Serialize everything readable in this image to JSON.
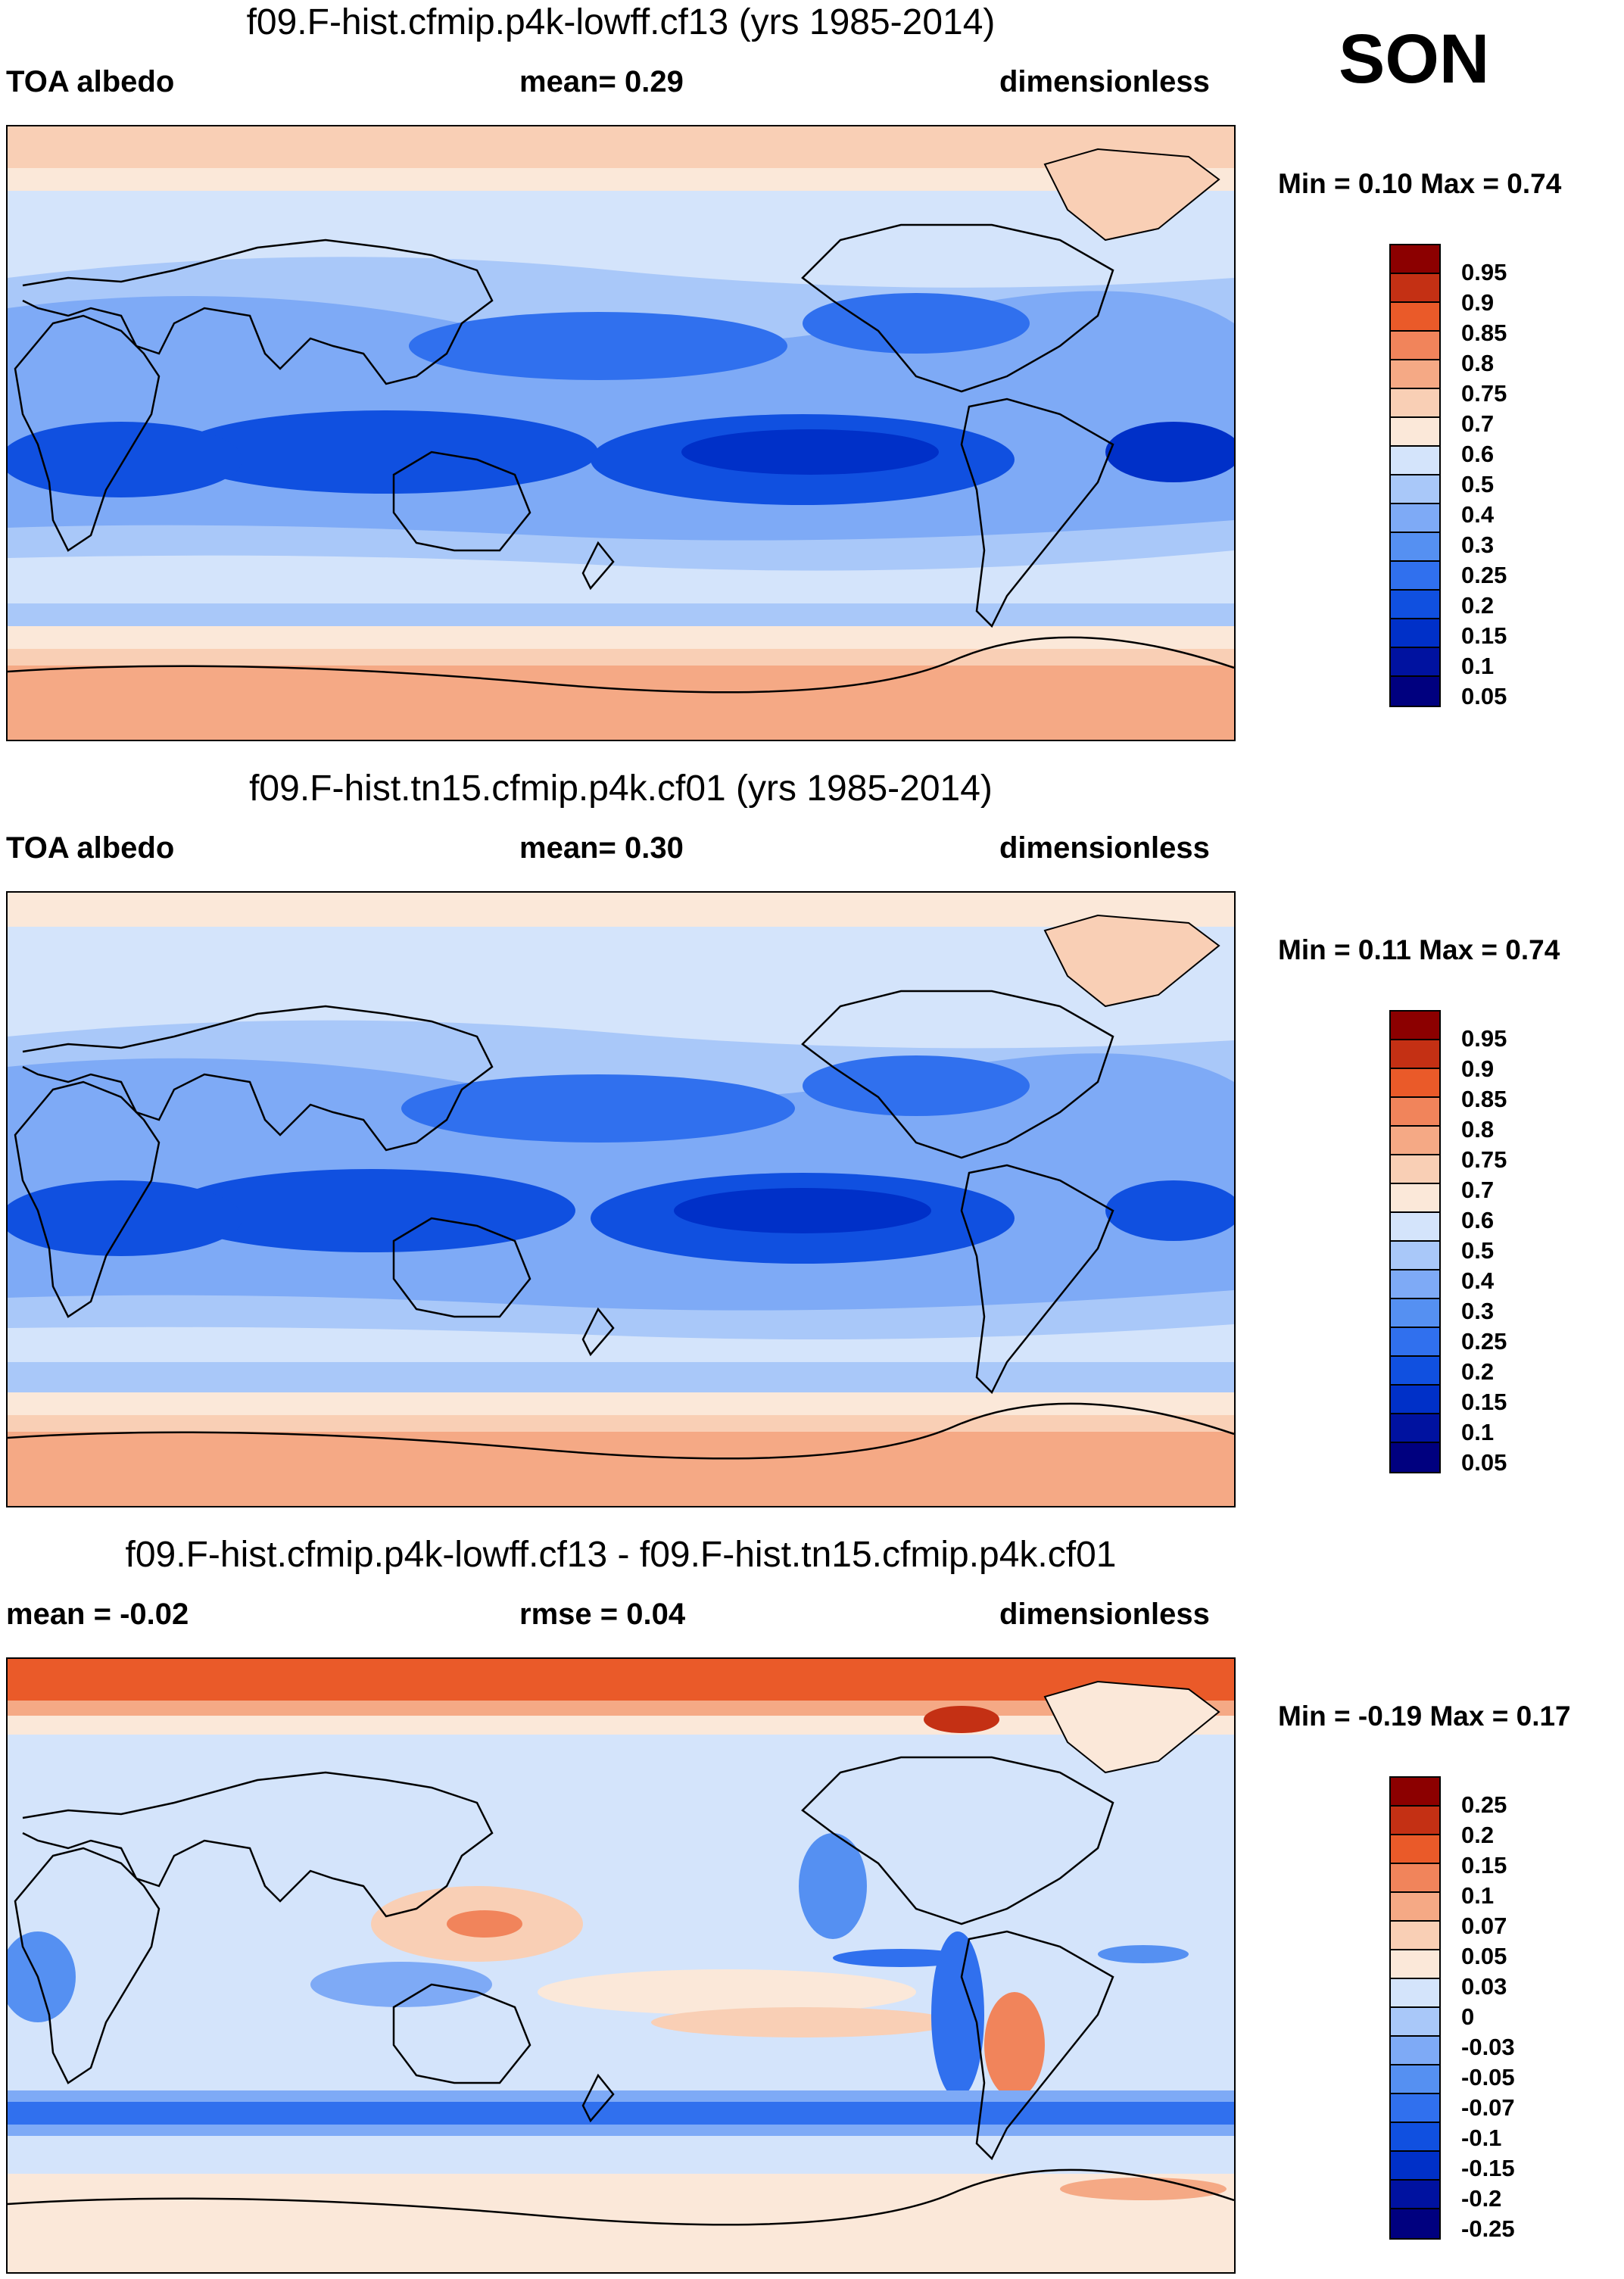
{
  "season": "SON",
  "colors": {
    "albedo_scale": [
      "#00007f",
      "#0012a0",
      "#0030c8",
      "#1050e0",
      "#3070ee",
      "#5590f2",
      "#7eaaf6",
      "#a9c8f9",
      "#d4e4fb",
      "#fbe8d9",
      "#f9cfb5",
      "#f5a985",
      "#f1845b",
      "#ea5a29",
      "#c43014",
      "#8c0000"
    ],
    "diff_scale": [
      "#00007f",
      "#0012a0",
      "#0030c8",
      "#1050e0",
      "#3070ee",
      "#5590f2",
      "#7eaaf6",
      "#a9c8f9",
      "#d4e4fb",
      "#fbe8d9",
      "#f9cfb5",
      "#f5a985",
      "#f1845b",
      "#ea5a29",
      "#c43014",
      "#8c0000"
    ]
  },
  "panels": [
    {
      "title": "f09.F-hist.cfmip.p4k-lowff.cf13 (yrs 1985-2014)",
      "left": "TOA albedo",
      "middle": "mean=   0.29",
      "right": "dimensionless",
      "minmax": "Min =   0.10 Max =   0.74",
      "legend_labels": [
        "0.95",
        "0.9",
        "0.85",
        "0.8",
        "0.75",
        "0.7",
        "0.6",
        "0.5",
        "0.4",
        "0.3",
        "0.25",
        "0.2",
        "0.15",
        "0.1",
        "0.05"
      ]
    },
    {
      "title": "f09.F-hist.tn15.cfmip.p4k.cf01 (yrs 1985-2014)",
      "left": "TOA albedo",
      "middle": "mean=   0.30",
      "right": "dimensionless",
      "minmax": "Min =   0.11 Max =   0.74",
      "legend_labels": [
        "0.95",
        "0.9",
        "0.85",
        "0.8",
        "0.75",
        "0.7",
        "0.6",
        "0.5",
        "0.4",
        "0.3",
        "0.25",
        "0.2",
        "0.15",
        "0.1",
        "0.05"
      ]
    },
    {
      "title": "f09.F-hist.cfmip.p4k-lowff.cf13 - f09.F-hist.tn15.cfmip.p4k.cf01",
      "left": "mean =  -0.02",
      "middle": "rmse =   0.04",
      "right": "dimensionless",
      "minmax": "Min =  -0.19 Max =   0.17",
      "legend_labels": [
        "0.25",
        "0.2",
        "0.15",
        "0.1",
        "0.07",
        "0.05",
        "0.03",
        "0",
        "-0.03",
        "-0.05",
        "-0.07",
        "-0.1",
        "-0.15",
        "-0.2",
        "-0.25"
      ]
    }
  ]
}
